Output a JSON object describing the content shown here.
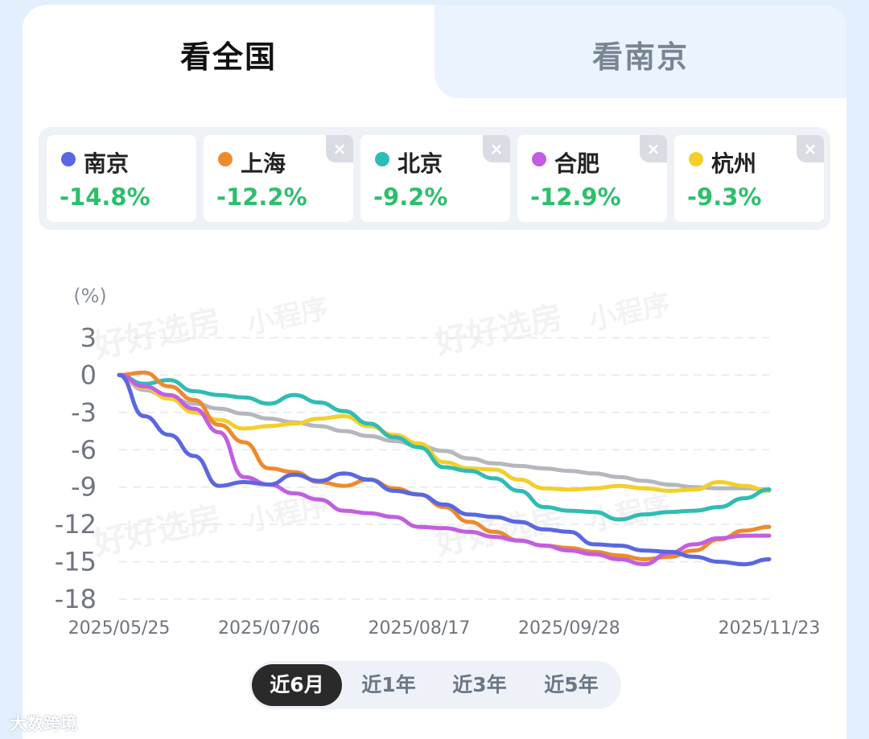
{
  "tabs": {
    "national": "看全国",
    "nanjing": "看南京"
  },
  "legend": [
    {
      "name": "南京",
      "value": "-14.8%",
      "color": "#5a67e0",
      "closable": false
    },
    {
      "name": "上海",
      "value": "-12.2%",
      "color": "#ee8a2e",
      "closable": true
    },
    {
      "name": "北京",
      "value": "-9.2%",
      "color": "#2fbcb4",
      "closable": true
    },
    {
      "name": "合肥",
      "value": "-12.9%",
      "color": "#c25ee0",
      "closable": true
    },
    {
      "name": "杭州",
      "value": "-9.3%",
      "color": "#f2cf2a",
      "closable": true
    }
  ],
  "close_glyph": "×",
  "range_buttons": [
    "近6月",
    "近1年",
    "近3年",
    "近5年"
  ],
  "range_selected": "近6月",
  "watermark": [
    "好好选房",
    "小程序"
  ],
  "footer_brand": "大数跨境",
  "chart_data": {
    "type": "line",
    "ylabel": "(%)",
    "ylim": [
      -18,
      3
    ],
    "yticks": [
      3,
      0,
      -3,
      -6,
      -9,
      -12,
      -15,
      -18
    ],
    "xlim": [
      "2025/05/25",
      "2025/11/23"
    ],
    "xticks": [
      "2025/05/25",
      "2025/07/06",
      "2025/08/17",
      "2025/09/28",
      "2025/11/23"
    ],
    "grid": "horizontal dashed",
    "x": [
      "2025/05/25",
      "2025/06/01",
      "2025/06/08",
      "2025/06/15",
      "2025/06/22",
      "2025/06/29",
      "2025/07/06",
      "2025/07/13",
      "2025/07/20",
      "2025/07/27",
      "2025/08/03",
      "2025/08/10",
      "2025/08/17",
      "2025/08/24",
      "2025/08/31",
      "2025/09/07",
      "2025/09/14",
      "2025/09/21",
      "2025/09/28",
      "2025/10/05",
      "2025/10/12",
      "2025/10/19",
      "2025/10/26",
      "2025/11/02",
      "2025/11/09",
      "2025/11/16",
      "2025/11/23"
    ],
    "series": [
      {
        "name": "南京",
        "color": "#5a67e0",
        "values": [
          0,
          -3.3,
          -4.8,
          -6.5,
          -8.9,
          -8.6,
          -8.8,
          -8.0,
          -8.5,
          -7.9,
          -8.4,
          -9.3,
          -9.6,
          -10.4,
          -11.2,
          -11.4,
          -11.8,
          -12.4,
          -12.6,
          -13.6,
          -13.7,
          -14.1,
          -14.2,
          -14.6,
          -15.0,
          -15.2,
          -14.8
        ]
      },
      {
        "name": "上海",
        "color": "#ee8a2e",
        "values": [
          0,
          0.2,
          -0.9,
          -2.0,
          -4.0,
          -5.4,
          -7.5,
          -7.8,
          -8.6,
          -8.9,
          -8.4,
          -9.1,
          -9.6,
          -10.6,
          -11.8,
          -12.6,
          -13.3,
          -13.7,
          -13.9,
          -14.2,
          -14.5,
          -14.8,
          -14.6,
          -14.1,
          -13.2,
          -12.5,
          -12.2
        ]
      },
      {
        "name": "北京",
        "color": "#2fbcb4",
        "values": [
          0,
          -0.7,
          -0.4,
          -1.3,
          -1.6,
          -1.8,
          -2.3,
          -1.6,
          -2.2,
          -2.9,
          -3.9,
          -5.0,
          -5.8,
          -7.4,
          -7.7,
          -8.3,
          -9.3,
          -10.6,
          -10.9,
          -11.0,
          -11.6,
          -11.2,
          -11.0,
          -10.9,
          -10.6,
          -9.9,
          -9.2
        ]
      },
      {
        "name": "合肥",
        "color": "#c25ee0",
        "values": [
          0,
          -0.9,
          -1.6,
          -2.7,
          -4.6,
          -8.2,
          -8.8,
          -9.5,
          -10.0,
          -10.9,
          -11.1,
          -11.4,
          -12.2,
          -12.3,
          -12.6,
          -13.0,
          -13.3,
          -13.7,
          -14.1,
          -14.4,
          -14.8,
          -15.2,
          -14.3,
          -13.6,
          -13.1,
          -12.9,
          -12.9
        ]
      },
      {
        "name": "杭州",
        "color": "#f2cf2a",
        "values": [
          0,
          -1.0,
          -1.9,
          -3.0,
          -3.6,
          -4.3,
          -4.1,
          -3.9,
          -3.5,
          -3.3,
          -4.1,
          -4.8,
          -5.5,
          -7.0,
          -7.5,
          -7.6,
          -8.4,
          -9.1,
          -9.2,
          -9.1,
          -8.9,
          -9.1,
          -9.3,
          -9.2,
          -8.6,
          -8.9,
          -9.3
        ]
      },
      {
        "color": "#b5b7bd",
        "values": [
          0,
          -1.2,
          -1.8,
          -2.3,
          -2.7,
          -3.1,
          -3.5,
          -3.8,
          -4.1,
          -4.5,
          -4.9,
          -5.3,
          -5.7,
          -6.1,
          -6.7,
          -7.1,
          -7.3,
          -7.5,
          -7.7,
          -7.9,
          -8.2,
          -8.5,
          -8.8,
          -9.0,
          -9.1,
          -9.1,
          -9.2
        ]
      }
    ]
  }
}
